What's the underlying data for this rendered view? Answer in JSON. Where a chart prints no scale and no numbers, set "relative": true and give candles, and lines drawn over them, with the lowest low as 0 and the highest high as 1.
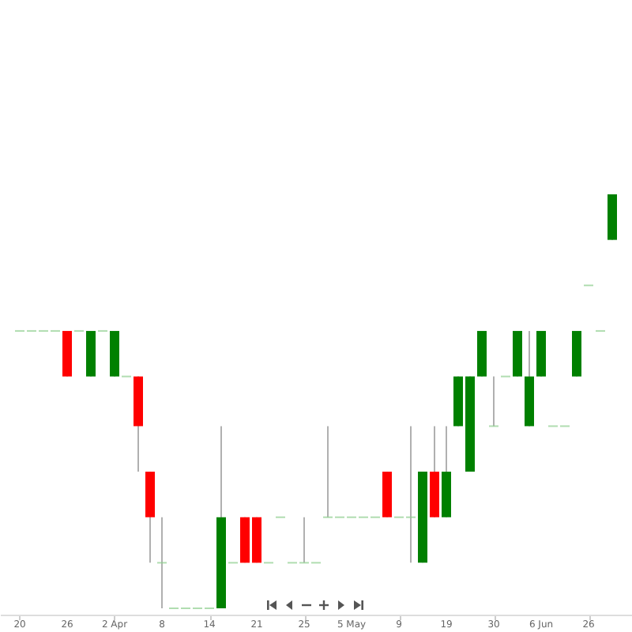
{
  "chart_data": {
    "type": "candlestick",
    "relative": true,
    "tick_labels": "x",
    "categories": [
      "20",
      null,
      null,
      null,
      "26",
      null,
      null,
      null,
      "2 Apr",
      null,
      null,
      null,
      "8",
      null,
      null,
      null,
      "14",
      null,
      null,
      null,
      "21",
      null,
      null,
      null,
      "25",
      null,
      null,
      null,
      "5 May",
      null,
      null,
      null,
      "9",
      null,
      null,
      null,
      "19",
      null,
      null,
      null,
      "30",
      null,
      null,
      null,
      "6 Jun",
      null,
      null,
      null,
      "26",
      null,
      null
    ],
    "ohlc": [
      [
        0.67,
        0.67,
        0.67,
        0.67
      ],
      [
        0.67,
        0.67,
        0.67,
        0.67
      ],
      [
        0.67,
        0.67,
        0.67,
        0.67
      ],
      [
        0.67,
        0.67,
        0.67,
        0.67
      ],
      [
        0.67,
        0.67,
        0.56,
        0.56
      ],
      [
        0.67,
        0.67,
        0.67,
        0.67
      ],
      [
        0.56,
        0.67,
        0.56,
        0.67
      ],
      [
        0.67,
        0.67,
        0.67,
        0.67
      ],
      [
        0.56,
        0.67,
        0.56,
        0.67
      ],
      [
        0.56,
        0.56,
        0.56,
        0.56
      ],
      [
        0.56,
        0.56,
        0.33,
        0.44
      ],
      [
        0.33,
        0.33,
        0.11,
        0.22
      ],
      [
        0.11,
        0.22,
        0,
        0.11
      ],
      [
        0,
        0,
        0,
        0
      ],
      [
        0,
        0,
        0,
        0
      ],
      [
        0,
        0,
        0,
        0
      ],
      [
        0,
        0,
        0,
        0
      ],
      [
        0,
        0.44,
        0,
        0.22
      ],
      [
        0.11,
        0.11,
        0.11,
        0.11
      ],
      [
        0.22,
        0.22,
        0.11,
        0.11
      ],
      [
        0.22,
        0.22,
        0.11,
        0.11
      ],
      [
        0.11,
        0.11,
        0.11,
        0.11
      ],
      [
        0.22,
        0.22,
        0.22,
        0.22
      ],
      [
        0.11,
        0.11,
        0.11,
        0.11
      ],
      [
        0.11,
        0.22,
        0.11,
        0.11
      ],
      [
        0.11,
        0.11,
        0.11,
        0.11
      ],
      [
        0.22,
        0.44,
        0.22,
        0.22
      ],
      [
        0.22,
        0.22,
        0.22,
        0.22
      ],
      [
        0.22,
        0.22,
        0.22,
        0.22
      ],
      [
        0.22,
        0.22,
        0.22,
        0.22
      ],
      [
        0.22,
        0.22,
        0.22,
        0.22
      ],
      [
        0.33,
        0.33,
        0.22,
        0.22
      ],
      [
        0.22,
        0.22,
        0.22,
        0.22
      ],
      [
        0.22,
        0.44,
        0.11,
        0.22
      ],
      [
        0.11,
        0.33,
        0.11,
        0.33
      ],
      [
        0.33,
        0.44,
        0.22,
        0.22
      ],
      [
        0.22,
        0.44,
        0.22,
        0.33
      ],
      [
        0.44,
        0.56,
        0.44,
        0.56
      ],
      [
        0.33,
        0.56,
        0.33,
        0.56
      ],
      [
        0.56,
        0.67,
        0.56,
        0.67
      ],
      [
        0.44,
        0.56,
        0.44,
        0.44
      ],
      [
        0.56,
        0.56,
        0.56,
        0.56
      ],
      [
        0.56,
        0.67,
        0.56,
        0.67
      ],
      [
        0.44,
        0.67,
        0.44,
        0.56
      ],
      [
        0.56,
        0.67,
        0.56,
        0.67
      ],
      [
        0.44,
        0.44,
        0.44,
        0.44
      ],
      [
        0.44,
        0.44,
        0.44,
        0.44
      ],
      [
        0.56,
        0.67,
        0.56,
        0.67
      ],
      [
        0.78,
        0.78,
        0.78,
        0.78
      ],
      [
        0.67,
        0.67,
        0.67,
        0.67
      ],
      [
        0.89,
        1,
        0.89,
        1
      ]
    ]
  }
}
